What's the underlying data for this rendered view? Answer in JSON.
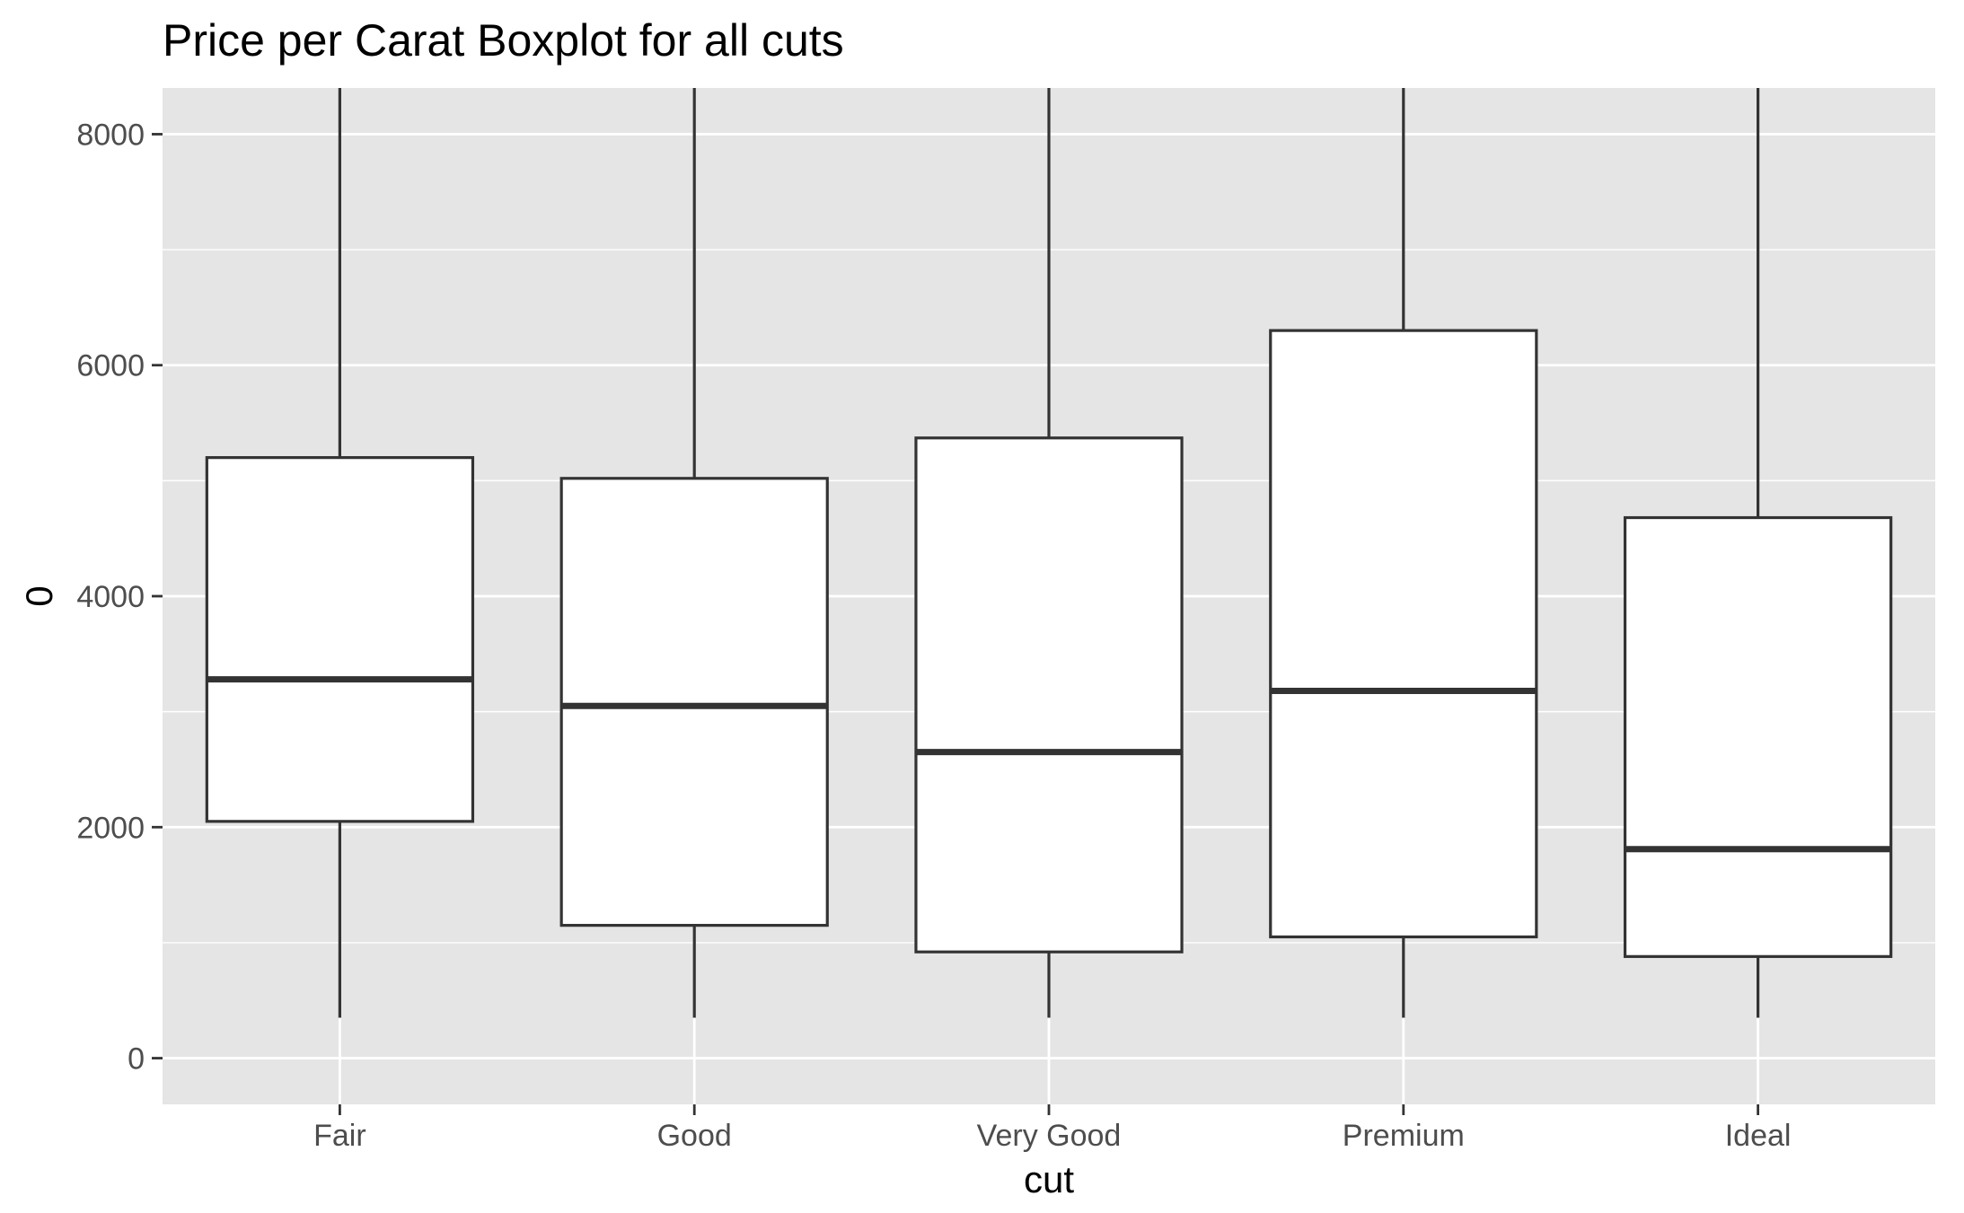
{
  "chart_data": {
    "type": "boxplot",
    "title": "Price per Carat Boxplot for all cuts",
    "xlabel": "cut",
    "ylabel": "0",
    "categories": [
      "Fair",
      "Good",
      "Very Good",
      "Premium",
      "Ideal"
    ],
    "boxes": [
      {
        "category": "Fair",
        "lower_whisker": 350,
        "q1": 2050,
        "median": 3280,
        "q3": 5200,
        "upper_whisker_top": "beyond axis"
      },
      {
        "category": "Good",
        "lower_whisker": 350,
        "q1": 1150,
        "median": 3050,
        "q3": 5020,
        "upper_whisker_top": "beyond axis"
      },
      {
        "category": "Very Good",
        "lower_whisker": 350,
        "q1": 920,
        "median": 2650,
        "q3": 5370,
        "upper_whisker_top": "beyond axis"
      },
      {
        "category": "Premium",
        "lower_whisker": 350,
        "q1": 1050,
        "median": 3180,
        "q3": 6300,
        "upper_whisker_top": "beyond axis"
      },
      {
        "category": "Ideal",
        "lower_whisker": 350,
        "q1": 880,
        "median": 1810,
        "q3": 4680,
        "upper_whisker_top": "beyond axis"
      }
    ],
    "yticks": [
      0,
      2000,
      4000,
      6000,
      8000
    ],
    "ytick_labels": [
      "0",
      "2000",
      "4000",
      "6000",
      "8000"
    ],
    "ylim": [
      -400,
      8400
    ],
    "grid": true,
    "colors": {
      "panel_background": "#e5e5e5",
      "gridline": "#ffffff",
      "box_fill": "#ffffff",
      "box_stroke": "#333333",
      "tick_label": "#4d4d4d"
    }
  }
}
